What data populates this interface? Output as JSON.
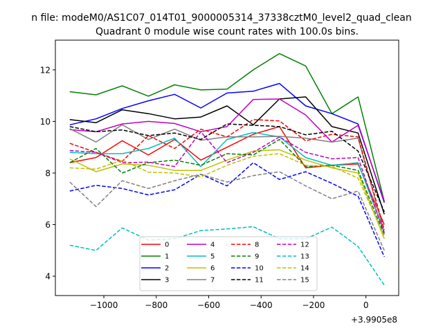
{
  "chart_data": {
    "type": "line",
    "suptitle": "n file: modeM0/AS1C07_014T01_9000005314_37338cztM0_level2_quad_clean",
    "title": "Quadrant 0 module wise count rates with 100.0s bins.",
    "xlabel": "",
    "ylabel": "",
    "x_offset_label": "+3.9905e8",
    "x": [
      -1130,
      -1030,
      -930,
      -830,
      -730,
      -630,
      -530,
      -430,
      -330,
      -230,
      -130,
      -30,
      70
    ],
    "xlim": [
      -1185,
      125
    ],
    "ylim": [
      3.25,
      13.15
    ],
    "xticks": [
      -1000,
      -800,
      -600,
      -400,
      -200,
      0
    ],
    "xtick_labels": [
      "−1000",
      "−800",
      "−600",
      "−400",
      "−200",
      "0"
    ],
    "yticks": [
      4,
      6,
      8,
      10,
      12
    ],
    "ytick_labels": [
      "4",
      "6",
      "8",
      "10",
      "12"
    ],
    "grid": false,
    "legend_placement": "lower-center",
    "legend_columns": 4,
    "series": [
      {
        "name": "0",
        "color": "#ff0000",
        "dash": "solid",
        "values": [
          8.4,
          8.6,
          9.25,
          8.7,
          9.3,
          8.5,
          9.0,
          9.5,
          9.8,
          8.2,
          8.3,
          8.35,
          6.0
        ]
      },
      {
        "name": "1",
        "color": "#008000",
        "dash": "solid",
        "values": [
          11.15,
          11.03,
          11.38,
          10.98,
          11.42,
          11.22,
          11.25,
          12.0,
          12.63,
          12.15,
          10.3,
          10.95,
          6.9
        ]
      },
      {
        "name": "2",
        "color": "#0000ff",
        "dash": "solid",
        "values": [
          9.87,
          10.1,
          10.5,
          10.8,
          11.05,
          10.52,
          11.1,
          11.17,
          11.47,
          10.6,
          10.3,
          9.9,
          6.85
        ]
      },
      {
        "name": "3",
        "color": "#000000",
        "dash": "solid",
        "values": [
          10.07,
          9.95,
          10.45,
          10.3,
          10.1,
          10.17,
          10.6,
          9.87,
          10.87,
          10.95,
          9.8,
          9.55,
          6.4
        ]
      },
      {
        "name": "4",
        "color": "#bf00bf",
        "dash": "solid",
        "values": [
          9.68,
          9.6,
          9.9,
          10.0,
          9.92,
          9.6,
          9.8,
          10.85,
          10.87,
          10.25,
          9.2,
          9.85,
          6.9
        ]
      },
      {
        "name": "5",
        "color": "#00bfbf",
        "dash": "solid",
        "values": [
          8.8,
          8.75,
          8.75,
          8.95,
          9.35,
          8.25,
          9.3,
          9.57,
          9.4,
          8.6,
          8.3,
          8.4,
          5.7
        ]
      },
      {
        "name": "6",
        "color": "#bfbf00",
        "dash": "solid",
        "values": [
          8.55,
          8.05,
          8.35,
          8.3,
          8.1,
          8.1,
          8.5,
          8.85,
          8.9,
          8.5,
          8.2,
          8.0,
          5.45
        ]
      },
      {
        "name": "7",
        "color": "#808080",
        "dash": "solid",
        "values": [
          9.72,
          9.2,
          9.87,
          9.3,
          9.7,
          9.27,
          9.4,
          9.4,
          9.42,
          9.35,
          9.2,
          9.35,
          5.7
        ]
      },
      {
        "name": "8",
        "color": "#ff0000",
        "dash": "dashed",
        "values": [
          9.15,
          8.8,
          8.45,
          9.45,
          8.95,
          9.7,
          9.4,
          10.07,
          10.02,
          9.25,
          9.5,
          9.4,
          5.8
        ]
      },
      {
        "name": "9",
        "color": "#008000",
        "dash": "dashed",
        "values": [
          8.4,
          8.95,
          8.0,
          8.4,
          8.5,
          8.3,
          8.75,
          8.7,
          9.3,
          8.25,
          8.3,
          8.1,
          5.6
        ]
      },
      {
        "name": "10",
        "color": "#0000ff",
        "dash": "dashed",
        "values": [
          7.3,
          7.52,
          7.4,
          7.15,
          7.35,
          7.95,
          7.5,
          8.4,
          7.75,
          8.05,
          7.6,
          7.1,
          4.75
        ]
      },
      {
        "name": "11",
        "color": "#000000",
        "dash": "dashed",
        "values": [
          9.8,
          9.6,
          9.67,
          9.45,
          9.55,
          9.3,
          9.9,
          9.85,
          9.8,
          9.48,
          9.62,
          8.85,
          6.5
        ]
      },
      {
        "name": "12",
        "color": "#bf00bf",
        "dash": "dashed",
        "values": [
          8.87,
          8.8,
          8.4,
          8.42,
          8.25,
          9.6,
          8.4,
          8.8,
          9.4,
          8.8,
          8.55,
          8.6,
          5.65
        ]
      },
      {
        "name": "13",
        "color": "#00bfbf",
        "dash": "dashed",
        "values": [
          5.2,
          5.0,
          5.87,
          5.4,
          5.45,
          5.77,
          5.83,
          5.92,
          5.45,
          5.45,
          5.9,
          5.15,
          3.65
        ]
      },
      {
        "name": "14",
        "color": "#bfbf00",
        "dash": "dashed",
        "values": [
          8.2,
          8.15,
          8.5,
          8.03,
          8.0,
          7.85,
          8.3,
          8.65,
          8.75,
          8.3,
          8.25,
          7.8,
          5.55
        ]
      },
      {
        "name": "15",
        "color": "#808080",
        "dash": "dashed",
        "values": [
          7.65,
          6.7,
          7.7,
          7.4,
          7.7,
          7.95,
          7.65,
          7.9,
          8.05,
          7.5,
          7.0,
          7.3,
          5.0
        ]
      }
    ]
  }
}
